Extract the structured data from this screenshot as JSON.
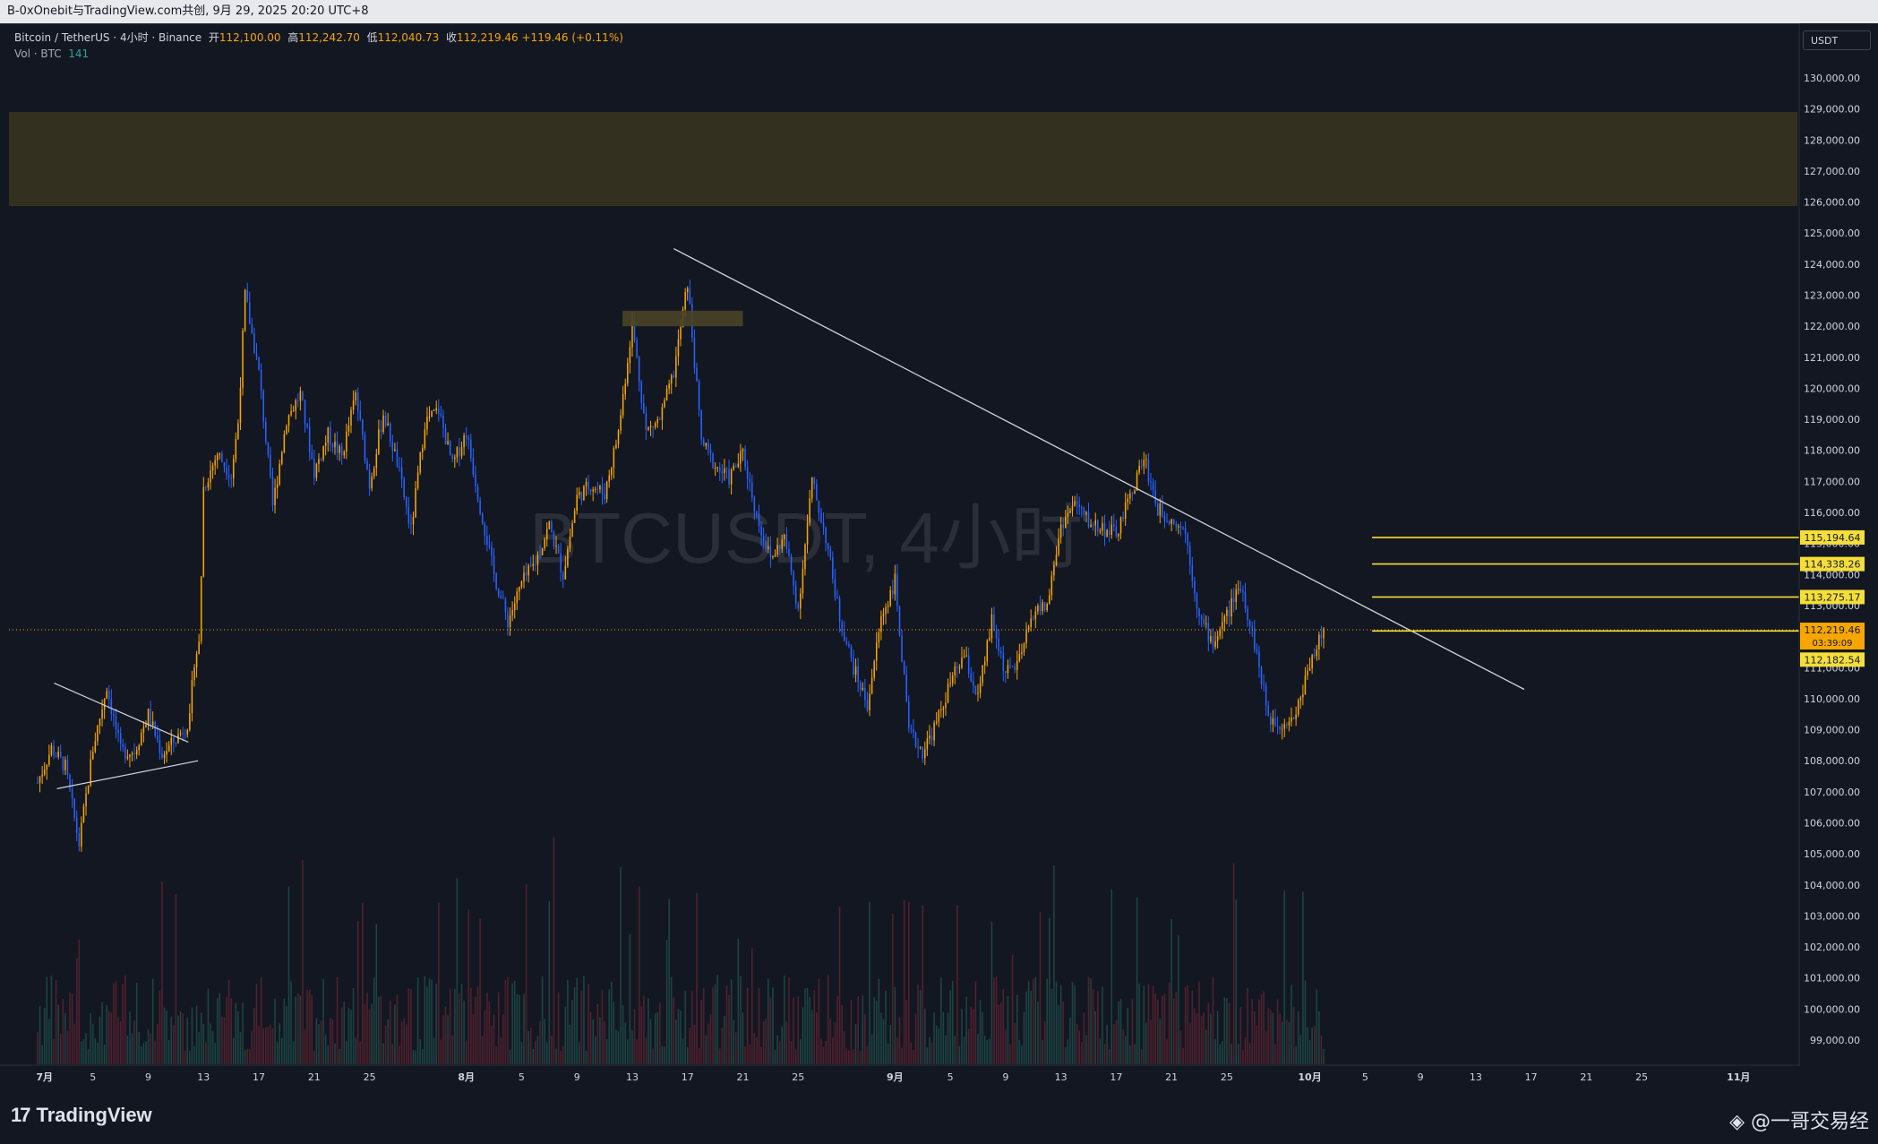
{
  "topbar": {
    "text": "B-0xOnebit与TradingView.com共创, 9月 29, 2025 20:20 UTC+8"
  },
  "legend": {
    "symbol": "Bitcoin / TetherUS · 4小时 · Binance",
    "open_label": "开",
    "open": "112,100.00",
    "high_label": "高",
    "high": "112,242.70",
    "low_label": "低",
    "low": "112,040.73",
    "close_label": "收",
    "close": "112,219.46",
    "change": "+119.46 (+0.11%)",
    "vol_label": "Vol · BTC",
    "vol_value": "141"
  },
  "currency_label": "USDT",
  "chart_watermark": "BTCUSDT, 4小时",
  "brand": {
    "tradingview": "TradingView",
    "author": "@一哥交易经"
  },
  "colors": {
    "up": "#f7a600",
    "down": "#2962ff",
    "bg": "#131722",
    "level": "#f5de3a",
    "zone": "#3a3520"
  },
  "chart_data": {
    "type": "candlestick",
    "title": "BTCUSDT",
    "timeframe": "4小时",
    "ylim": [
      98500,
      131500
    ],
    "x_range_days": [
      0,
      127
    ],
    "y_ticks": [
      "130,000.00",
      "129,000.00",
      "128,000.00",
      "127,000.00",
      "126,000.00",
      "125,000.00",
      "124,000.00",
      "123,000.00",
      "122,000.00",
      "121,000.00",
      "120,000.00",
      "119,000.00",
      "118,000.00",
      "117,000.00",
      "116,000.00",
      "115,000.00",
      "114,000.00",
      "113,000.00",
      "112,000.00",
      "111,000.00",
      "110,000.00",
      "109,000.00",
      "108,000.00",
      "107,000.00",
      "106,000.00",
      "105,000.00",
      "104,000.00",
      "103,000.00",
      "102,000.00",
      "101,000.00",
      "100,000.00",
      "99,000.00"
    ],
    "x_ticks": [
      {
        "label": "7月",
        "day": 0.5,
        "bold": true
      },
      {
        "label": "5",
        "day": 4
      },
      {
        "label": "9",
        "day": 8
      },
      {
        "label": "13",
        "day": 12
      },
      {
        "label": "17",
        "day": 16
      },
      {
        "label": "21",
        "day": 20
      },
      {
        "label": "25",
        "day": 24
      },
      {
        "label": "8月",
        "day": 31,
        "bold": true
      },
      {
        "label": "5",
        "day": 35
      },
      {
        "label": "9",
        "day": 39
      },
      {
        "label": "13",
        "day": 43
      },
      {
        "label": "17",
        "day": 47
      },
      {
        "label": "21",
        "day": 51
      },
      {
        "label": "25",
        "day": 55
      },
      {
        "label": "9月",
        "day": 62,
        "bold": true
      },
      {
        "label": "5",
        "day": 66
      },
      {
        "label": "9",
        "day": 70
      },
      {
        "label": "13",
        "day": 74
      },
      {
        "label": "17",
        "day": 78
      },
      {
        "label": "21",
        "day": 82
      },
      {
        "label": "25",
        "day": 86
      },
      {
        "label": "10月",
        "day": 92,
        "bold": true
      },
      {
        "label": "5",
        "day": 96
      },
      {
        "label": "9",
        "day": 100
      },
      {
        "label": "13",
        "day": 104
      },
      {
        "label": "17",
        "day": 108
      },
      {
        "label": "21",
        "day": 112
      },
      {
        "label": "25",
        "day": 116
      },
      {
        "label": "11月",
        "day": 123,
        "bold": true
      }
    ],
    "price_path": [
      [
        0,
        107300
      ],
      [
        1,
        108400
      ],
      [
        2,
        107800
      ],
      [
        3,
        105300
      ],
      [
        4,
        108400
      ],
      [
        5,
        110400
      ],
      [
        6,
        108300
      ],
      [
        7,
        108300
      ],
      [
        8,
        109500
      ],
      [
        9,
        108200
      ],
      [
        10,
        108700
      ],
      [
        11,
        109300
      ],
      [
        11.3,
        111200
      ],
      [
        11.7,
        111800
      ],
      [
        12,
        116800
      ],
      [
        13,
        117900
      ],
      [
        14,
        117200
      ],
      [
        14.5,
        118900
      ],
      [
        15,
        123000
      ],
      [
        16,
        120500
      ],
      [
        17,
        116200
      ],
      [
        18,
        119000
      ],
      [
        19,
        119800
      ],
      [
        20,
        117300
      ],
      [
        21,
        118500
      ],
      [
        22,
        117800
      ],
      [
        23,
        119800
      ],
      [
        24,
        116900
      ],
      [
        25,
        119200
      ],
      [
        26,
        117600
      ],
      [
        27,
        115400
      ],
      [
        28,
        118900
      ],
      [
        29,
        119300
      ],
      [
        30,
        117500
      ],
      [
        31,
        118600
      ],
      [
        32,
        116200
      ],
      [
        33,
        114000
      ],
      [
        34,
        112500
      ],
      [
        35,
        113700
      ],
      [
        36,
        114400
      ],
      [
        37,
        115600
      ],
      [
        38,
        114000
      ],
      [
        39,
        116500
      ],
      [
        40,
        116900
      ],
      [
        41,
        116600
      ],
      [
        42,
        118600
      ],
      [
        43,
        122100
      ],
      [
        44,
        118600
      ],
      [
        45,
        119000
      ],
      [
        46,
        120500
      ],
      [
        47,
        123400
      ],
      [
        48,
        118300
      ],
      [
        49,
        117500
      ],
      [
        50,
        117100
      ],
      [
        51,
        117900
      ],
      [
        52,
        115900
      ],
      [
        53,
        114500
      ],
      [
        54,
        115200
      ],
      [
        55,
        112900
      ],
      [
        56,
        117000
      ],
      [
        57,
        115200
      ],
      [
        58,
        112600
      ],
      [
        59,
        111000
      ],
      [
        60,
        109800
      ],
      [
        61,
        112600
      ],
      [
        62,
        113800
      ],
      [
        63,
        108900
      ],
      [
        64,
        108300
      ],
      [
        65,
        109200
      ],
      [
        66,
        110500
      ],
      [
        67,
        111400
      ],
      [
        68,
        110000
      ],
      [
        69,
        112500
      ],
      [
        70,
        110800
      ],
      [
        71,
        111200
      ],
      [
        72,
        112800
      ],
      [
        73,
        113000
      ],
      [
        74,
        115600
      ],
      [
        75,
        116300
      ],
      [
        76,
        115700
      ],
      [
        77,
        115500
      ],
      [
        78,
        115300
      ],
      [
        79,
        116500
      ],
      [
        80,
        117800
      ],
      [
        81,
        116100
      ],
      [
        82,
        115800
      ],
      [
        83,
        115400
      ],
      [
        84,
        112600
      ],
      [
        85,
        111800
      ],
      [
        86,
        112700
      ],
      [
        87,
        113700
      ],
      [
        88,
        111800
      ],
      [
        89,
        109400
      ],
      [
        90,
        109200
      ],
      [
        91,
        109500
      ],
      [
        92,
        111200
      ],
      [
        93,
        112219
      ]
    ],
    "series": [
      {
        "name": "Vol · BTC",
        "last": 141
      }
    ],
    "annotations": {
      "horizontal_levels": [
        {
          "price": 115194.64,
          "label": "115,194.64"
        },
        {
          "price": 114338.26,
          "label": "114,338.26"
        },
        {
          "price": 113275.17,
          "label": "113,275.17"
        },
        {
          "price": 112182.54,
          "label": "112,182.54"
        }
      ],
      "current_price": {
        "price": 112219.46,
        "label": "112,219.46",
        "countdown": "03:39:09"
      },
      "resistance_zone": {
        "from": 126000,
        "to": 129000
      },
      "small_zone": {
        "from": 122000,
        "to": 122500,
        "day_from": 42.3,
        "day_to": 51
      },
      "downtrend_line": {
        "start": [
          46,
          124500
        ],
        "end": [
          107.5,
          110300
        ]
      },
      "triangle_upper": {
        "start": [
          1.2,
          110500
        ],
        "end": [
          10.9,
          108600
        ]
      },
      "triangle_lower": {
        "start": [
          1.4,
          107100
        ],
        "end": [
          11.6,
          108000
        ]
      }
    }
  }
}
